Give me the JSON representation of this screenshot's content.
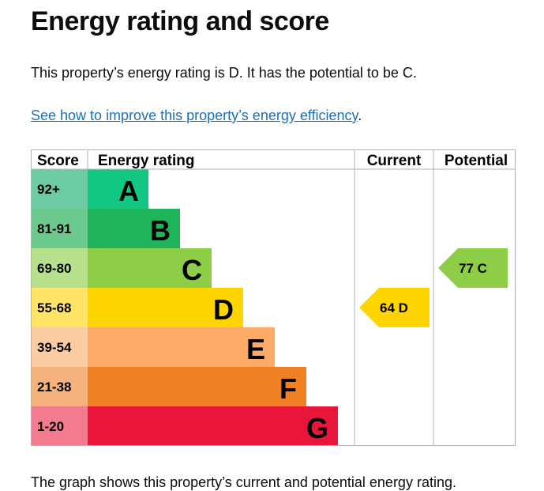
{
  "heading": "Energy rating and score",
  "summary": "This property’s energy rating is D. It has the potential to be C.",
  "link": "See how to improve this property’s energy efficiency",
  "link_suffix": ".",
  "footer_text": "The graph shows this property’s current and potential energy rating.",
  "chart_data": {
    "type": "bar",
    "headers": [
      "Score",
      "Energy rating",
      "Current",
      "Potential"
    ],
    "bands": [
      {
        "score": "92+",
        "letter": "A",
        "color": "#12c781",
        "score_color": "#6ccba0"
      },
      {
        "score": "81-91",
        "letter": "B",
        "color": "#1fb35a",
        "score_color": "#6dca8e"
      },
      {
        "score": "69-80",
        "letter": "C",
        "color": "#8dce46",
        "score_color": "#b6e08b"
      },
      {
        "score": "55-68",
        "letter": "D",
        "color": "#ffd500",
        "score_color": "#ffe467"
      },
      {
        "score": "39-54",
        "letter": "E",
        "color": "#fcaa65",
        "score_color": "#fdcca3"
      },
      {
        "score": "21-38",
        "letter": "F",
        "color": "#ef8023",
        "score_color": "#f5b37b"
      },
      {
        "score": "1-20",
        "letter": "G",
        "color": "#e9153b",
        "score_color": "#f27b8e"
      }
    ],
    "current": {
      "value": 64,
      "letter": "D",
      "label": "64  D"
    },
    "potential": {
      "value": 77,
      "letter": "C",
      "label": "77  C"
    }
  }
}
